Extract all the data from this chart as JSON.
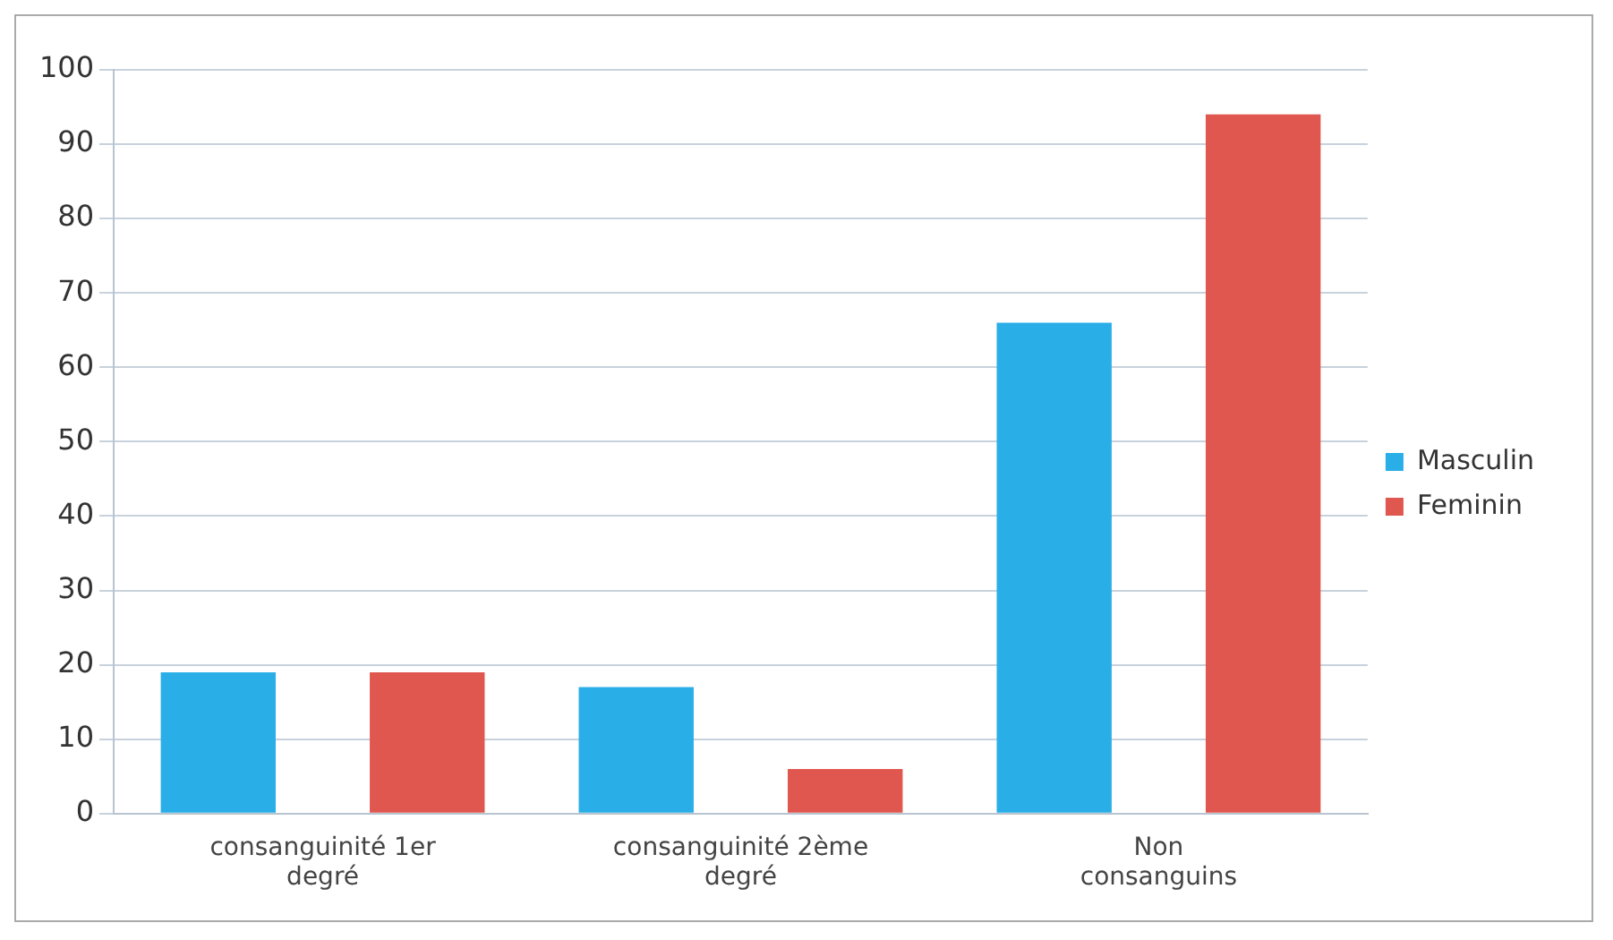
{
  "chart_data": {
    "type": "bar",
    "categories": [
      "consanguinité 1er degré",
      "consanguinité 2ème degré",
      "Non consanguins"
    ],
    "series": [
      {
        "name": "Masculin",
        "color": "#2aaee8",
        "values": [
          19,
          17,
          66
        ]
      },
      {
        "name": "Feminin",
        "color": "#e0574f",
        "values": [
          19,
          6,
          94
        ]
      }
    ],
    "ylim": [
      0,
      100
    ],
    "yticks": [
      0,
      10,
      20,
      30,
      40,
      50,
      60,
      70,
      80,
      90,
      100
    ],
    "grid": "y",
    "legend": "right"
  }
}
